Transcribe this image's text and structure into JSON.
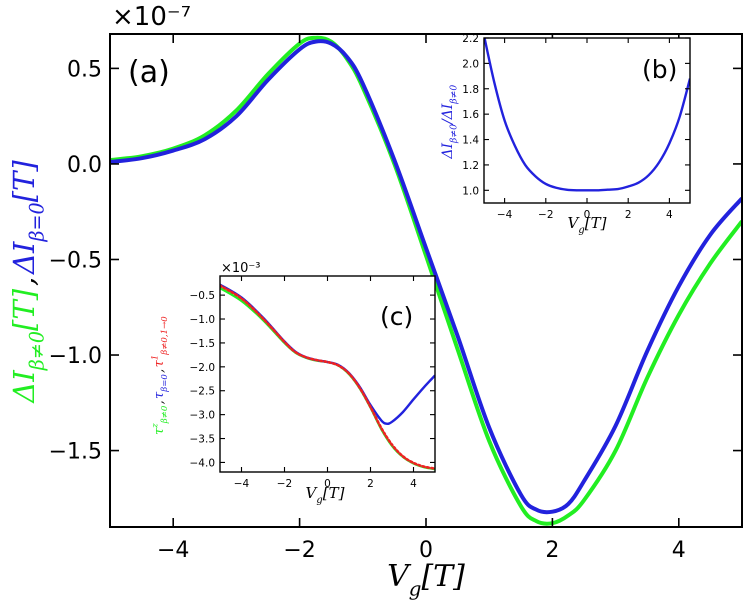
{
  "colors": {
    "green": "#22ee22",
    "blue": "#2222dd",
    "red": "#ee2222",
    "axis": "#000000"
  },
  "chart_data": [
    {
      "id": "a",
      "type": "line",
      "panel_label": "(a)",
      "scale_label": "×10⁻⁷",
      "xlabel": "V_g[T]",
      "ylabel_parts": [
        {
          "text": "ΔI_{β≠0}[T]",
          "color": "green"
        },
        {
          "text": ",",
          "color": "black"
        },
        {
          "text": "ΔI_{β=0}[T]",
          "color": "blue"
        }
      ],
      "xlim": [
        -5,
        5
      ],
      "ylim": [
        -1.9,
        0.68
      ],
      "xticks": [
        -4,
        -2,
        0,
        2,
        4
      ],
      "xtick_labels": [
        "−4",
        "−2",
        "0",
        "2",
        "4"
      ],
      "yticks": [
        0.5,
        0.0,
        -0.5,
        -1.0,
        -1.5
      ],
      "ytick_labels": [
        "0.5",
        "0.0",
        "−0.5",
        "−1.0",
        "−1.5"
      ],
      "series": [
        {
          "name": "ΔI β≠0",
          "color": "green",
          "x": [
            -5,
            -4.5,
            -4,
            -3.5,
            -3,
            -2.5,
            -2,
            -1.75,
            -1.5,
            -1.25,
            -1,
            -0.5,
            0,
            0.5,
            1,
            1.5,
            1.75,
            2,
            2.25,
            2.5,
            3,
            3.5,
            4,
            4.5,
            5
          ],
          "y": [
            0.02,
            0.04,
            0.08,
            0.15,
            0.28,
            0.47,
            0.63,
            0.66,
            0.64,
            0.55,
            0.4,
            0.0,
            -0.48,
            -0.97,
            -1.45,
            -1.79,
            -1.87,
            -1.88,
            -1.84,
            -1.76,
            -1.5,
            -1.12,
            -0.79,
            -0.52,
            -0.3
          ]
        },
        {
          "name": "ΔI β=0",
          "color": "blue",
          "x": [
            -5,
            -4.5,
            -4,
            -3.5,
            -3,
            -2.5,
            -2,
            -1.75,
            -1.5,
            -1.25,
            -1,
            -0.5,
            0,
            0.5,
            1,
            1.5,
            1.75,
            2,
            2.25,
            2.5,
            3,
            3.5,
            4,
            4.5,
            5
          ],
          "y": [
            0.01,
            0.03,
            0.07,
            0.13,
            0.25,
            0.44,
            0.6,
            0.64,
            0.63,
            0.56,
            0.42,
            0.02,
            -0.44,
            -0.9,
            -1.38,
            -1.73,
            -1.81,
            -1.82,
            -1.78,
            -1.66,
            -1.37,
            -0.98,
            -0.64,
            -0.37,
            -0.18
          ]
        }
      ]
    },
    {
      "id": "b",
      "type": "line",
      "panel_label": "(b)",
      "xlabel": "V_g[T]",
      "ylabel": "ΔI_{β≠0}/ΔI_{β≠0}",
      "xlim": [
        -5,
        5
      ],
      "ylim": [
        0.9,
        2.2
      ],
      "xticks": [
        -4,
        -2,
        0,
        2,
        4
      ],
      "xtick_labels": [
        "−4",
        "−2",
        "0",
        "2",
        "4"
      ],
      "yticks": [
        1.0,
        1.2,
        1.4,
        1.6,
        1.8,
        2.0,
        2.2
      ],
      "ytick_labels": [
        "1.0",
        "1.2",
        "1.4",
        "1.6",
        "1.8",
        "2.0",
        "2.2"
      ],
      "series": [
        {
          "name": "ratio",
          "color": "blue",
          "x": [
            -5,
            -4.5,
            -4,
            -3.5,
            -3,
            -2.5,
            -2,
            -1.5,
            -1,
            -0.5,
            0,
            0.5,
            1,
            1.5,
            2,
            2.5,
            3,
            3.5,
            4,
            4.5,
            5
          ],
          "y": [
            2.22,
            1.85,
            1.55,
            1.35,
            1.2,
            1.11,
            1.05,
            1.02,
            1.005,
            1.0,
            1.0,
            1.0,
            1.005,
            1.01,
            1.03,
            1.06,
            1.12,
            1.22,
            1.37,
            1.58,
            1.88
          ]
        }
      ]
    },
    {
      "id": "c",
      "type": "line",
      "panel_label": "(c)",
      "scale_label": "×10⁻³",
      "xlabel": "V_g[T]",
      "ylabel_parts": [
        {
          "text": "τ^z_{β≠0}",
          "color": "green"
        },
        {
          "text": ",",
          "color": "black"
        },
        {
          "text": "τ_{β=0}",
          "color": "blue"
        },
        {
          "text": ",",
          "color": "black"
        },
        {
          "text": "τ^1_{β≠0,1→0}",
          "color": "red"
        }
      ],
      "xlim": [
        -5,
        5
      ],
      "ylim": [
        -4.2,
        -0.1
      ],
      "xticks": [
        -4,
        -2,
        0,
        2,
        4
      ],
      "xtick_labels": [
        "−4",
        "−2",
        "0",
        "2",
        "4"
      ],
      "yticks": [
        -0.5,
        -1.0,
        -1.5,
        -2.0,
        -2.5,
        -3.0,
        -3.5,
        -4.0
      ],
      "ytick_labels": [
        "−0.5",
        "−1.0",
        "−1.5",
        "−2.0",
        "−2.5",
        "−3.0",
        "−3.5",
        "−4.0"
      ],
      "series": [
        {
          "name": "τz β≠0",
          "color": "green",
          "style": "solid",
          "x": [
            -5,
            -4,
            -3,
            -2,
            -1.5,
            -1,
            -0.5,
            0,
            0.5,
            1,
            1.5,
            2,
            2.5,
            3,
            3.5,
            4,
            4.5,
            5
          ],
          "y": [
            -0.35,
            -0.62,
            -1.02,
            -1.5,
            -1.7,
            -1.81,
            -1.87,
            -1.9,
            -1.97,
            -2.15,
            -2.45,
            -2.85,
            -3.3,
            -3.65,
            -3.88,
            -4.02,
            -4.1,
            -4.14
          ]
        },
        {
          "name": "τ β=0",
          "color": "blue",
          "style": "solid",
          "x": [
            -5,
            -4,
            -3,
            -2,
            -1.5,
            -1,
            -0.5,
            0,
            0.5,
            1,
            1.5,
            2,
            2.5,
            2.75,
            3,
            3.5,
            4,
            4.5,
            5
          ],
          "y": [
            -0.28,
            -0.55,
            -0.97,
            -1.47,
            -1.68,
            -1.8,
            -1.86,
            -1.9,
            -1.96,
            -2.13,
            -2.42,
            -2.8,
            -3.12,
            -3.19,
            -3.15,
            -2.95,
            -2.68,
            -2.42,
            -2.18
          ]
        },
        {
          "name": "τ1 β≠0,1→0",
          "color": "red",
          "style": "dotted",
          "x": [
            -5,
            -4,
            -3,
            -2,
            -1.5,
            -1,
            -0.5,
            0,
            0.5,
            1,
            1.5,
            2,
            2.5,
            3,
            3.5,
            4,
            4.5,
            5
          ],
          "y": [
            -0.3,
            -0.57,
            -0.99,
            -1.48,
            -1.69,
            -1.8,
            -1.86,
            -1.9,
            -1.97,
            -2.14,
            -2.44,
            -2.84,
            -3.28,
            -3.63,
            -3.87,
            -4.01,
            -4.09,
            -4.13
          ]
        }
      ]
    }
  ]
}
